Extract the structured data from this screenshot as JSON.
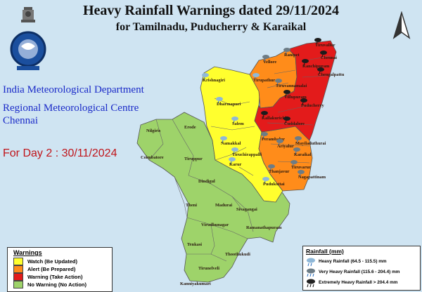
{
  "title": "Heavy Rainfall Warnings dated 29/11/2024",
  "subtitle": "for Tamilnadu, Puducherry & Karaikal",
  "organisation": [
    "India Meteorological Department",
    "Regional Meteorological Centre",
    "Chennai"
  ],
  "day_label": "For Day 2 : 30/11/2024",
  "colors": {
    "no_warning": "#9ed36a",
    "watch": "#ffff2e",
    "alert": "#ff8c1a",
    "warning": "#e31b1b",
    "water": "#cfe4f2"
  },
  "warnings_legend": {
    "heading": "Warnings",
    "items": [
      {
        "label": "Watch (Be Updated)",
        "level": "watch"
      },
      {
        "label": "Alert (Be Prepared)",
        "level": "alert"
      },
      {
        "label": "Warning (Take Action)",
        "level": "warning"
      },
      {
        "label": "No Warning (No Action)",
        "level": "no_warning"
      }
    ]
  },
  "rainfall_legend": {
    "heading": "Rainfall (mm)",
    "items": [
      {
        "label": "Heavy Rainfall (64.5 - 115.5) mm",
        "icon": "heavy-rain-icon"
      },
      {
        "label": "Very Heavy Rainfall (115.6 - 204.4) mm",
        "icon": "very-heavy-rain-icon"
      },
      {
        "label": "Extremely Heavy Rainfall > 204.4 mm",
        "icon": "extremely-heavy-rain-icon"
      }
    ]
  },
  "districts": [
    {
      "name": "Tiruvallur",
      "level": "warning"
    },
    {
      "name": "Chennai",
      "level": "warning"
    },
    {
      "name": "Kanchipuram",
      "level": "warning"
    },
    {
      "name": "Chengalpattu",
      "level": "warning"
    },
    {
      "name": "Vellore",
      "level": "alert"
    },
    {
      "name": "Ranipet",
      "level": "alert"
    },
    {
      "name": "Tirupathur",
      "level": "alert"
    },
    {
      "name": "Krishnagiri",
      "level": "watch"
    },
    {
      "name": "Dharmapuri",
      "level": "watch"
    },
    {
      "name": "Salem",
      "level": "watch"
    },
    {
      "name": "Namakkal",
      "level": "watch"
    },
    {
      "name": "Tiruvannamalai",
      "level": "warning"
    },
    {
      "name": "Villupuram",
      "level": "warning"
    },
    {
      "name": "Puducherry",
      "level": "warning"
    },
    {
      "name": "Kallakurichi",
      "level": "warning"
    },
    {
      "name": "Cuddalore",
      "level": "warning"
    },
    {
      "name": "Perambalur",
      "level": "alert"
    },
    {
      "name": "Ariyalur",
      "level": "alert"
    },
    {
      "name": "Mayiladuthurai",
      "level": "alert"
    },
    {
      "name": "Karaikal",
      "level": "alert"
    },
    {
      "name": "Tiruvarur",
      "level": "alert"
    },
    {
      "name": "Nagapattinam",
      "level": "alert"
    },
    {
      "name": "Thanjavur",
      "level": "alert"
    },
    {
      "name": "Tiruchirappalli",
      "level": "watch"
    },
    {
      "name": "Karur",
      "level": "watch"
    },
    {
      "name": "Pudukottai",
      "level": "watch"
    },
    {
      "name": "Nilgiris",
      "level": "no_warning"
    },
    {
      "name": "Erode",
      "level": "no_warning"
    },
    {
      "name": "Coimbatore",
      "level": "no_warning"
    },
    {
      "name": "Tiruppur",
      "level": "no_warning"
    },
    {
      "name": "Dindigul",
      "level": "no_warning"
    },
    {
      "name": "Theni",
      "level": "no_warning"
    },
    {
      "name": "Madurai",
      "level": "no_warning"
    },
    {
      "name": "Sivagangai",
      "level": "no_warning"
    },
    {
      "name": "Virudhunagar",
      "level": "no_warning"
    },
    {
      "name": "Ramanathapuram",
      "level": "no_warning"
    },
    {
      "name": "Tenkasi",
      "level": "no_warning"
    },
    {
      "name": "Thoothukudi",
      "level": "no_warning"
    },
    {
      "name": "Tirunelveli",
      "level": "no_warning"
    },
    {
      "name": "Kanniyakumari",
      "level": "no_warning"
    }
  ]
}
